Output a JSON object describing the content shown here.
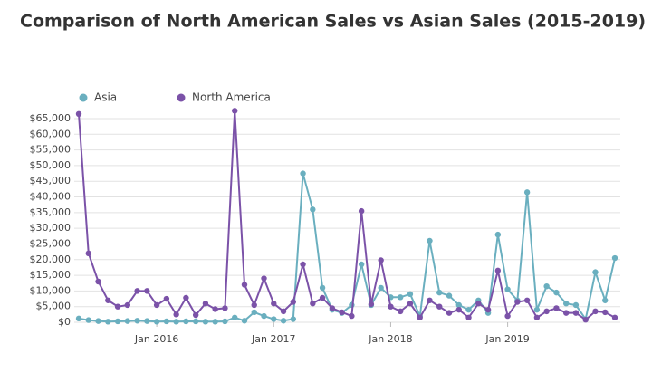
{
  "chart_data": {
    "type": "line",
    "title": "Comparison of North American Sales vs Asian Sales (2015-2019)",
    "x": [
      "2015-05",
      "2015-06",
      "2015-07",
      "2015-08",
      "2015-09",
      "2015-10",
      "2015-11",
      "2015-12",
      "2016-01",
      "2016-02",
      "2016-03",
      "2016-04",
      "2016-05",
      "2016-06",
      "2016-07",
      "2016-08",
      "2016-09",
      "2016-10",
      "2016-11",
      "2016-12",
      "2017-01",
      "2017-02",
      "2017-03",
      "2017-04",
      "2017-05",
      "2017-06",
      "2017-07",
      "2017-08",
      "2017-09",
      "2017-10",
      "2017-11",
      "2017-12",
      "2018-01",
      "2018-02",
      "2018-03",
      "2018-04",
      "2018-05",
      "2018-06",
      "2018-07",
      "2018-08",
      "2018-09",
      "2018-10",
      "2018-11",
      "2018-12",
      "2019-01",
      "2019-02",
      "2019-03",
      "2019-04",
      "2019-05",
      "2019-06",
      "2019-07",
      "2019-08",
      "2019-09",
      "2019-10",
      "2019-11",
      "2019-12"
    ],
    "series": [
      {
        "name": "Asia",
        "color": "#6aafbf",
        "values": [
          1200,
          700,
          400,
          200,
          300,
          400,
          500,
          400,
          200,
          300,
          200,
          300,
          300,
          200,
          200,
          300,
          1500,
          500,
          3200,
          2000,
          1000,
          500,
          1000,
          47500,
          36000,
          11000,
          4000,
          3000,
          5500,
          18500,
          5500,
          11000,
          8000,
          8000,
          9000,
          2000,
          26000,
          9500,
          8500,
          5500,
          4000,
          7000,
          3000,
          28000,
          10500,
          7000,
          41500,
          4000,
          11500,
          9500,
          6000,
          5500,
          1000,
          16000,
          7000,
          20500
        ]
      },
      {
        "name": "North America",
        "color": "#7b52a8",
        "values": [
          66500,
          22000,
          13000,
          7000,
          5000,
          5500,
          10000,
          10000,
          5500,
          7500,
          2500,
          7800,
          2300,
          6000,
          4200,
          4500,
          67500,
          12000,
          5500,
          14000,
          6000,
          3500,
          6500,
          18500,
          6000,
          7800,
          4500,
          3200,
          2000,
          35500,
          5800,
          19800,
          5000,
          3500,
          6000,
          1500,
          7000,
          5000,
          3000,
          4000,
          1500,
          6000,
          4000,
          16500,
          2000,
          6500,
          7000,
          1500,
          3500,
          4500,
          3000,
          3000,
          800,
          3500,
          3200,
          1500
        ]
      }
    ],
    "xticks": [
      {
        "value": "2016-01",
        "label": "Jan 2016"
      },
      {
        "value": "2017-01",
        "label": "Jan 2017"
      },
      {
        "value": "2018-01",
        "label": "Jan 2018"
      },
      {
        "value": "2019-01",
        "label": "Jan 2019"
      }
    ],
    "ylim": [
      0,
      65000
    ],
    "yticks": [
      {
        "value": 0,
        "label": "$0"
      },
      {
        "value": 5000,
        "label": "$5,000"
      },
      {
        "value": 10000,
        "label": "$10,000"
      },
      {
        "value": 15000,
        "label": "$15,000"
      },
      {
        "value": 20000,
        "label": "$20,000"
      },
      {
        "value": 25000,
        "label": "$25,000"
      },
      {
        "value": 30000,
        "label": "$30,000"
      },
      {
        "value": 35000,
        "label": "$35,000"
      },
      {
        "value": 40000,
        "label": "$40,000"
      },
      {
        "value": 45000,
        "label": "$45,000"
      },
      {
        "value": 50000,
        "label": "$50,000"
      },
      {
        "value": 55000,
        "label": "$55,000"
      },
      {
        "value": 60000,
        "label": "$60,000"
      },
      {
        "value": 65000,
        "label": "$65,000"
      }
    ],
    "grid": true,
    "legend": "top-left"
  }
}
